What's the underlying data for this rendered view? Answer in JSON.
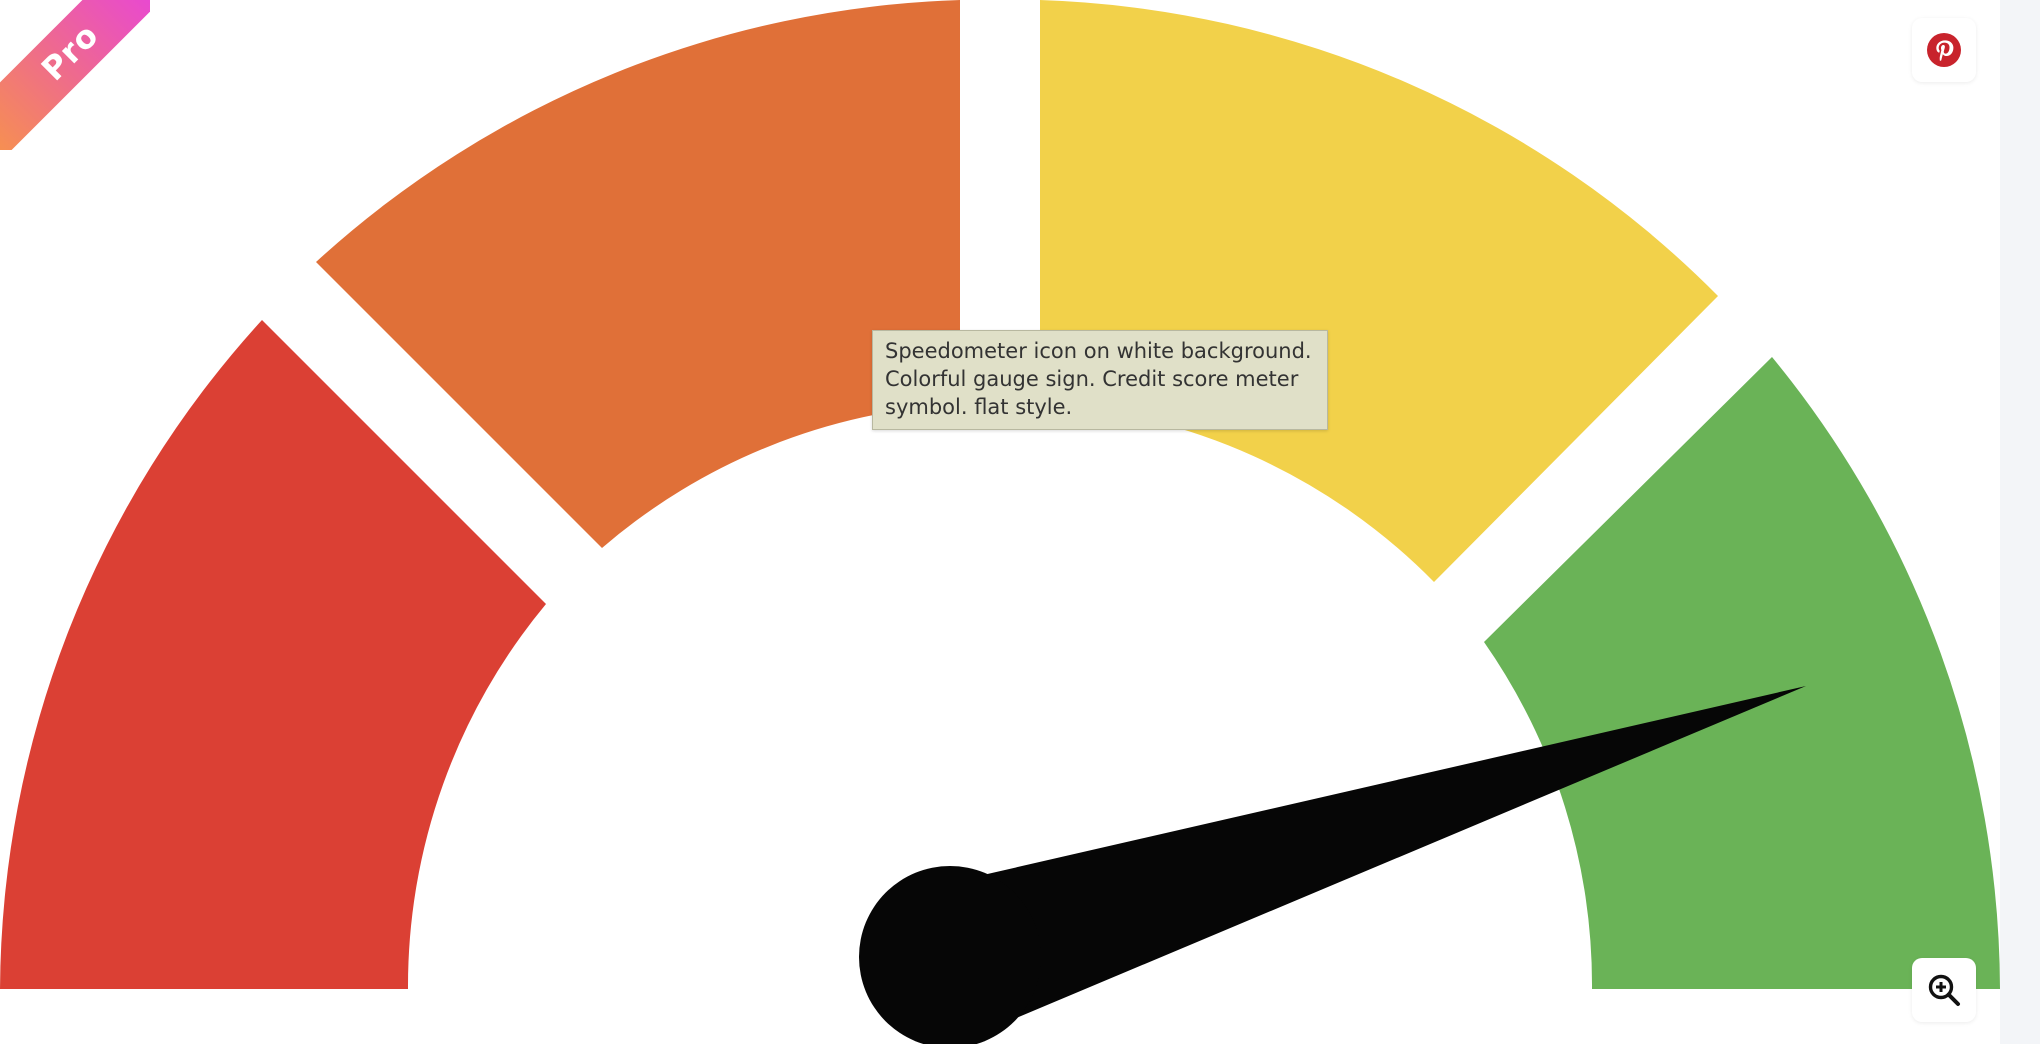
{
  "badge": {
    "label": "Pro"
  },
  "tooltip": {
    "text": "Speedometer icon on white background. Colorful gauge sign. Credit score meter symbol. flat style."
  },
  "gauge": {
    "segments": [
      {
        "name": "red",
        "color": "#db4034"
      },
      {
        "name": "orange",
        "color": "#e07038"
      },
      {
        "name": "yellow",
        "color": "#f2d14a"
      },
      {
        "name": "green",
        "color": "#6ab357"
      }
    ],
    "needle_color": "#060606"
  },
  "icons": {
    "pinterest": "pinterest-icon",
    "zoom": "zoom-in-icon"
  },
  "colors": {
    "ribbon_start": "#f7934c",
    "ribbon_end": "#e73ee6",
    "pinterest": "#c8232c"
  }
}
